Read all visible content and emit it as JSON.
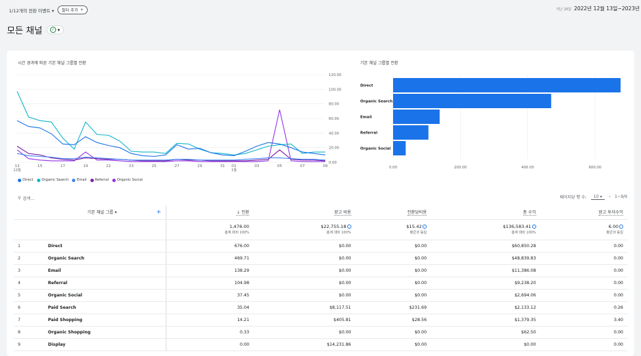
{
  "topbar": {
    "filter_label": "1/12개의 전환 이벤트",
    "add_filter": "필터 추가",
    "date_prefix": "지난 28일",
    "date_range": "2022년 12월 13일~2023년"
  },
  "page": {
    "title": "모든 채널"
  },
  "line_chart": {
    "title": "시간 경과에 따른 기본 채널 그룹별 전환"
  },
  "bar_chart_title": "기본 채널 그룹별 전환",
  "legend": [
    "Direct",
    "Organic Search",
    "Email",
    "Referral",
    "Organic Social"
  ],
  "colors": {
    "Direct": "#1a73e8",
    "Organic Search": "#12b5cb",
    "Email": "#4285f4",
    "Referral": "#7b1fa2",
    "Organic Social": "#9334e6",
    "accent": "#1a73e8"
  },
  "chart_data": [
    {
      "type": "line",
      "title": "시간 경과에 따른 기본 채널 그룹별 전환",
      "x": [
        "13",
        "14",
        "15",
        "16",
        "17",
        "18",
        "19",
        "20",
        "21",
        "22",
        "23",
        "24",
        "25",
        "26",
        "27",
        "28",
        "29",
        "30",
        "31",
        "01",
        "02",
        "03",
        "04",
        "05",
        "06",
        "07",
        "08",
        "09"
      ],
      "x_tick_labels": [
        "13",
        "15",
        "17",
        "19",
        "21",
        "23",
        "25",
        "27",
        "29",
        "31",
        "01",
        "03",
        "05",
        "07",
        "09"
      ],
      "x_sub_labels": {
        "13": "12월",
        "01": "1월"
      },
      "ylim": [
        0,
        120
      ],
      "y_ticks": [
        "0.00",
        "20.00",
        "40.00",
        "60.00",
        "80.00",
        "100.00",
        "120.00"
      ],
      "series": [
        {
          "name": "Direct",
          "values": [
            57,
            49,
            47,
            39,
            25,
            24,
            35,
            27,
            23,
            20,
            12,
            9,
            8,
            10,
            24,
            18,
            19,
            13,
            10,
            9,
            15,
            22,
            27,
            25,
            20,
            14,
            12,
            10
          ]
        },
        {
          "name": "Organic Search",
          "values": [
            97,
            62,
            57,
            55,
            33,
            18,
            55,
            38,
            37,
            29,
            15,
            14,
            14,
            12,
            26,
            25,
            18,
            13,
            12,
            10,
            12,
            17,
            22,
            24,
            25,
            12,
            14,
            14
          ]
        },
        {
          "name": "Email",
          "values": [
            12,
            9,
            8,
            7,
            5,
            5,
            7,
            6,
            5,
            4,
            3,
            3,
            3,
            3,
            4,
            4,
            3,
            3,
            3,
            3,
            4,
            5,
            6,
            6,
            5,
            4,
            4,
            3
          ]
        },
        {
          "name": "Referral",
          "values": [
            22,
            12,
            10,
            6,
            4,
            3,
            6,
            5,
            4,
            4,
            3,
            2,
            2,
            2,
            4,
            3,
            3,
            2,
            2,
            2,
            2,
            3,
            4,
            17,
            4,
            3,
            3,
            2
          ]
        },
        {
          "name": "Organic Social",
          "values": [
            17,
            5,
            3,
            2,
            2,
            2,
            14,
            3,
            3,
            2,
            1,
            1,
            1,
            1,
            2,
            2,
            1,
            1,
            1,
            1,
            1,
            1,
            2,
            72,
            2,
            1,
            1,
            1
          ]
        }
      ]
    },
    {
      "type": "bar",
      "title": "기본 채널 그룹별 전환",
      "categories": [
        "Direct",
        "Organic Search",
        "Email",
        "Referral",
        "Organic Social"
      ],
      "values": [
        676.0,
        469.71,
        138.29,
        104.98,
        37.45
      ],
      "xlim": [
        0,
        700
      ],
      "x_ticks": [
        "0.00",
        "200.00",
        "400.00",
        "600.00"
      ]
    }
  ],
  "search": {
    "placeholder": "검색..."
  },
  "pager": {
    "rows_label": "페이지당 행 수:",
    "rows_value": "10",
    "range": "1~9/9"
  },
  "table": {
    "headers": {
      "dimension": "기본 채널 그룹",
      "conversions": "↓ 전환",
      "ad_cost": "광고 비용",
      "cost_per_conv": "전환당비용",
      "revenue": "총 수익",
      "roas": "광고 투자수익"
    },
    "totals": {
      "conversions": "1,476.00",
      "conversions_sub": "총계 대비 100%",
      "ad_cost": "$22,755.18",
      "ad_cost_sub": "총계 대비 100%",
      "cost_per_conv": "$15.42",
      "cost_per_conv_sub": "평균과 동일",
      "revenue": "$136,583.41",
      "revenue_sub": "총계 대비 100%",
      "roas": "6.00",
      "roas_sub": "평균과 동일"
    },
    "rows": [
      {
        "i": "1",
        "ch": "Direct",
        "conv": "676.00",
        "cost": "$0.00",
        "cpc": "$0.00",
        "rev": "$60,850.28",
        "roas": "0.00"
      },
      {
        "i": "2",
        "ch": "Organic Search",
        "conv": "469.71",
        "cost": "$0.00",
        "cpc": "$0.00",
        "rev": "$48,839.83",
        "roas": "0.00"
      },
      {
        "i": "3",
        "ch": "Email",
        "conv": "138.29",
        "cost": "$0.00",
        "cpc": "$0.00",
        "rev": "$11,386.08",
        "roas": "0.00"
      },
      {
        "i": "4",
        "ch": "Referral",
        "conv": "104.98",
        "cost": "$0.00",
        "cpc": "$0.00",
        "rev": "$9,238.20",
        "roas": "0.00"
      },
      {
        "i": "5",
        "ch": "Organic Social",
        "conv": "37.45",
        "cost": "$0.00",
        "cpc": "$0.00",
        "rev": "$2,694.06",
        "roas": "0.00"
      },
      {
        "i": "6",
        "ch": "Paid Search",
        "conv": "35.04",
        "cost": "$8,117.51",
        "cpc": "$231.69",
        "rev": "$2,133.12",
        "roas": "0.26"
      },
      {
        "i": "7",
        "ch": "Paid Shopping",
        "conv": "14.21",
        "cost": "$405.81",
        "cpc": "$28.56",
        "rev": "$1,379.35",
        "roas": "3.40"
      },
      {
        "i": "8",
        "ch": "Organic Shopping",
        "conv": "0.33",
        "cost": "$0.00",
        "cpc": "$0.00",
        "rev": "$62.50",
        "roas": "0.00"
      },
      {
        "i": "9",
        "ch": "Display",
        "conv": "0.00",
        "cost": "$14,231.86",
        "cpc": "$0.00",
        "rev": "$0.00",
        "roas": "0.00"
      }
    ]
  }
}
